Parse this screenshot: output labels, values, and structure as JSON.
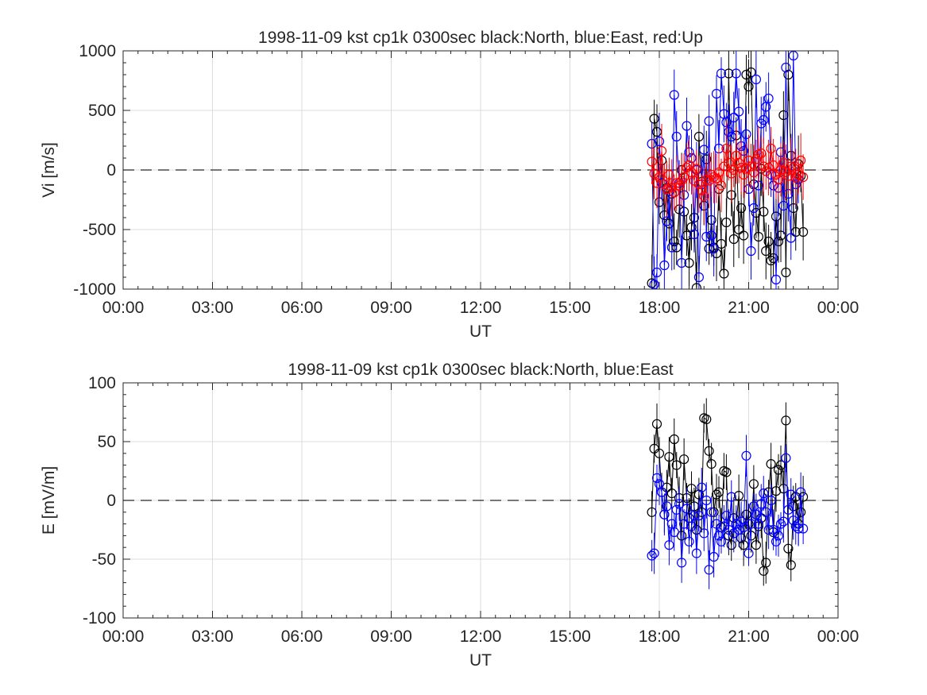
{
  "colors": {
    "north": "#000000",
    "east": "#0000ff",
    "up": "#ff0000",
    "grid": "#dcdcdc",
    "axis": "#262626"
  },
  "chart_data": [
    {
      "type": "line",
      "title": "1998-11-09 kst cp1k 0300sec black:North, blue:East, red:Up",
      "xlabel": "UT",
      "ylabel": "Vi [m/s]",
      "xlim": [
        0,
        24
      ],
      "ylim": [
        -1000,
        1000
      ],
      "xticks": [
        0,
        3,
        6,
        9,
        12,
        15,
        18,
        21,
        24
      ],
      "xticklabels": [
        "00:00",
        "03:00",
        "06:00",
        "09:00",
        "12:00",
        "15:00",
        "18:00",
        "21:00",
        "00:00"
      ],
      "yticks": [
        -1000,
        -500,
        0,
        500,
        1000
      ],
      "yticklabels": [
        "-1000",
        "-500",
        "0",
        "500",
        "1000"
      ],
      "grid": true,
      "markers": "open circles with error bars",
      "reference_line": {
        "y": 0,
        "style": "dashed"
      },
      "series": [
        {
          "name": "North",
          "color": "#000000",
          "x": [
            17.75,
            17.83,
            17.92,
            18.0,
            18.08,
            18.17,
            18.25,
            18.33,
            18.42,
            18.5,
            18.58,
            18.67,
            18.75,
            18.83,
            18.92,
            19.0,
            19.08,
            19.17,
            19.25,
            19.33,
            19.42,
            19.5,
            19.58,
            19.67,
            19.75,
            19.83,
            19.92,
            20.0,
            20.08,
            20.17,
            20.25,
            20.33,
            20.42,
            20.5,
            20.58,
            20.67,
            20.75,
            20.83,
            20.92,
            21.0,
            21.08,
            21.17,
            21.25,
            21.33,
            21.42,
            21.5,
            21.58,
            21.67,
            21.75,
            21.83,
            21.92,
            22.0,
            22.08,
            22.17,
            22.25,
            22.33,
            22.42,
            22.5,
            22.58,
            22.67,
            22.75,
            22.83
          ],
          "values": [
            -950,
            430,
            320,
            -270,
            80,
            -380,
            -150,
            -450,
            -200,
            -600,
            -650,
            -330,
            0,
            -350,
            -550,
            -780,
            -480,
            -400,
            -990,
            280,
            -100,
            -300,
            90,
            -660,
            -420,
            -650,
            -700,
            -160,
            -620,
            -870,
            -440,
            810,
            -210,
            -580,
            290,
            -500,
            -320,
            -550,
            800,
            700,
            820,
            -120,
            -360,
            -560,
            10,
            -350,
            -680,
            -600,
            -760,
            -740,
            -390,
            -600,
            -550,
            460,
            -860,
            800,
            120,
            -320,
            -520,
            50,
            -50,
            -520
          ]
        },
        {
          "name": "East",
          "color": "#0000ff",
          "x": [
            17.75,
            17.83,
            17.92,
            18.0,
            18.08,
            18.17,
            18.25,
            18.33,
            18.42,
            18.5,
            18.58,
            18.67,
            18.75,
            18.83,
            18.92,
            19.0,
            19.08,
            19.17,
            19.25,
            19.33,
            19.42,
            19.5,
            19.58,
            19.67,
            19.75,
            19.83,
            19.92,
            20.0,
            20.08,
            20.17,
            20.25,
            20.33,
            20.42,
            20.5,
            20.58,
            20.67,
            20.75,
            20.83,
            20.92,
            21.0,
            21.08,
            21.17,
            21.25,
            21.33,
            21.42,
            21.5,
            21.58,
            21.67,
            21.75,
            21.83,
            21.92,
            22.0,
            22.08,
            22.17,
            22.25,
            22.33,
            22.42,
            22.5,
            22.58,
            22.67
          ],
          "values": [
            220,
            -960,
            -860,
            240,
            -110,
            -800,
            -430,
            -180,
            -650,
            630,
            280,
            -110,
            -780,
            -210,
            370,
            150,
            100,
            -540,
            0,
            -900,
            -120,
            170,
            -560,
            410,
            -550,
            -660,
            640,
            180,
            810,
            470,
            400,
            320,
            280,
            440,
            810,
            490,
            200,
            160,
            300,
            -160,
            -680,
            -320,
            760,
            -130,
            390,
            420,
            530,
            600,
            -40,
            -130,
            -920,
            -150,
            150,
            -300,
            860,
            -200,
            -570,
            960,
            -120,
            -80
          ]
        },
        {
          "name": "Up",
          "color": "#ff0000",
          "x": [
            17.75,
            17.83,
            17.92,
            18.0,
            18.08,
            18.17,
            18.25,
            18.33,
            18.42,
            18.5,
            18.58,
            18.67,
            18.75,
            18.83,
            18.92,
            19.0,
            19.08,
            19.17,
            19.25,
            19.33,
            19.42,
            19.5,
            19.58,
            19.67,
            19.75,
            19.83,
            19.92,
            20.0,
            20.08,
            20.17,
            20.25,
            20.33,
            20.42,
            20.5,
            20.58,
            20.67,
            20.75,
            20.83,
            20.92,
            21.0,
            21.08,
            21.17,
            21.25,
            21.33,
            21.42,
            21.5,
            21.58,
            21.67,
            21.75,
            21.83,
            21.92,
            22.0,
            22.08,
            22.17,
            22.25,
            22.33,
            22.42,
            22.5,
            22.58,
            22.67,
            22.75,
            22.83
          ],
          "values": [
            70,
            -30,
            -110,
            -60,
            160,
            -120,
            -160,
            -40,
            -150,
            -190,
            -110,
            -130,
            -90,
            -60,
            20,
            40,
            -20,
            -90,
            10,
            -120,
            -170,
            -220,
            -80,
            -90,
            -40,
            -60,
            -70,
            -20,
            -130,
            30,
            180,
            60,
            -30,
            0,
            120,
            60,
            20,
            -40,
            10,
            80,
            30,
            -20,
            90,
            130,
            140,
            30,
            -10,
            20,
            180,
            40,
            -40,
            -80,
            0,
            60,
            -20,
            -50,
            30,
            20,
            -60,
            -40,
            80,
            -60
          ]
        }
      ]
    },
    {
      "type": "line",
      "title": "1998-11-09 kst cp1k 0300sec black:North, blue:East",
      "xlabel": "UT",
      "ylabel": "E [mV/m]",
      "xlim": [
        0,
        24
      ],
      "ylim": [
        -100,
        100
      ],
      "xticks": [
        0,
        3,
        6,
        9,
        12,
        15,
        18,
        21,
        24
      ],
      "xticklabels": [
        "00:00",
        "03:00",
        "06:00",
        "09:00",
        "12:00",
        "15:00",
        "18:00",
        "21:00",
        "00:00"
      ],
      "yticks": [
        -100,
        -50,
        0,
        50,
        100
      ],
      "yticklabels": [
        "-100",
        "-50",
        "0",
        "50",
        "100"
      ],
      "grid": true,
      "markers": "open circles with error bars",
      "reference_line": {
        "y": 0,
        "style": "dashed"
      },
      "series": [
        {
          "name": "North",
          "color": "#000000",
          "x": [
            17.75,
            17.83,
            17.92,
            18.0,
            18.08,
            18.17,
            18.25,
            18.33,
            18.42,
            18.5,
            18.58,
            18.67,
            18.75,
            18.83,
            18.92,
            19.0,
            19.08,
            19.17,
            19.25,
            19.33,
            19.42,
            19.5,
            19.58,
            19.67,
            19.75,
            19.83,
            19.92,
            20.0,
            20.08,
            20.17,
            20.25,
            20.33,
            20.42,
            20.5,
            20.58,
            20.67,
            20.75,
            20.83,
            20.92,
            21.0,
            21.08,
            21.17,
            21.25,
            21.33,
            21.42,
            21.5,
            21.58,
            21.67,
            21.75,
            21.83,
            21.92,
            22.0,
            22.08,
            22.17,
            22.25,
            22.33,
            22.42,
            22.5,
            22.58,
            22.67,
            22.75,
            22.83
          ],
          "values": [
            -10,
            44,
            65,
            40,
            7,
            -12,
            11,
            37,
            6,
            52,
            30,
            2,
            -30,
            35,
            2,
            -15,
            10,
            -5,
            -25,
            5,
            -10,
            70,
            69,
            42,
            31,
            -10,
            5,
            7,
            -23,
            25,
            24,
            -30,
            -38,
            -15,
            -20,
            4,
            -32,
            -38,
            -12,
            -20,
            -30,
            14,
            -38,
            -22,
            -15,
            -60,
            -53,
            7,
            31,
            -27,
            8,
            26,
            30,
            10,
            68,
            -41,
            -55,
            -5,
            3,
            -20,
            -10,
            3
          ]
        },
        {
          "name": "East",
          "color": "#0000ff",
          "x": [
            17.75,
            17.83,
            17.92,
            18.0,
            18.08,
            18.17,
            18.25,
            18.33,
            18.42,
            18.5,
            18.58,
            18.67,
            18.75,
            18.83,
            18.92,
            19.0,
            19.08,
            19.17,
            19.25,
            19.33,
            19.42,
            19.5,
            19.58,
            19.67,
            19.75,
            19.83,
            19.92,
            20.0,
            20.08,
            20.17,
            20.25,
            20.33,
            20.42,
            20.5,
            20.58,
            20.67,
            20.75,
            20.83,
            20.92,
            21.0,
            21.08,
            21.17,
            21.25,
            21.33,
            21.42,
            21.5,
            21.58,
            21.67,
            21.75,
            21.83,
            21.92,
            22.0,
            22.08,
            22.17,
            22.25,
            22.33,
            22.42,
            22.5,
            22.58,
            22.67,
            22.75,
            22.83
          ],
          "values": [
            -47,
            -45,
            19,
            14,
            7,
            -12,
            -5,
            -38,
            -20,
            -27,
            -8,
            -3,
            -53,
            -20,
            -7,
            -35,
            -22,
            -13,
            -45,
            -13,
            11,
            -28,
            0,
            -59,
            -10,
            -48,
            -20,
            -30,
            -35,
            -22,
            -13,
            -25,
            3,
            -28,
            -20,
            -25,
            -18,
            -23,
            38,
            -45,
            -20,
            -5,
            -12,
            -20,
            -3,
            6,
            -10,
            -25,
            0,
            -25,
            -35,
            -30,
            -20,
            -18,
            36,
            -8,
            5,
            -17,
            -22,
            -24,
            7,
            -24
          ]
        }
      ]
    }
  ]
}
